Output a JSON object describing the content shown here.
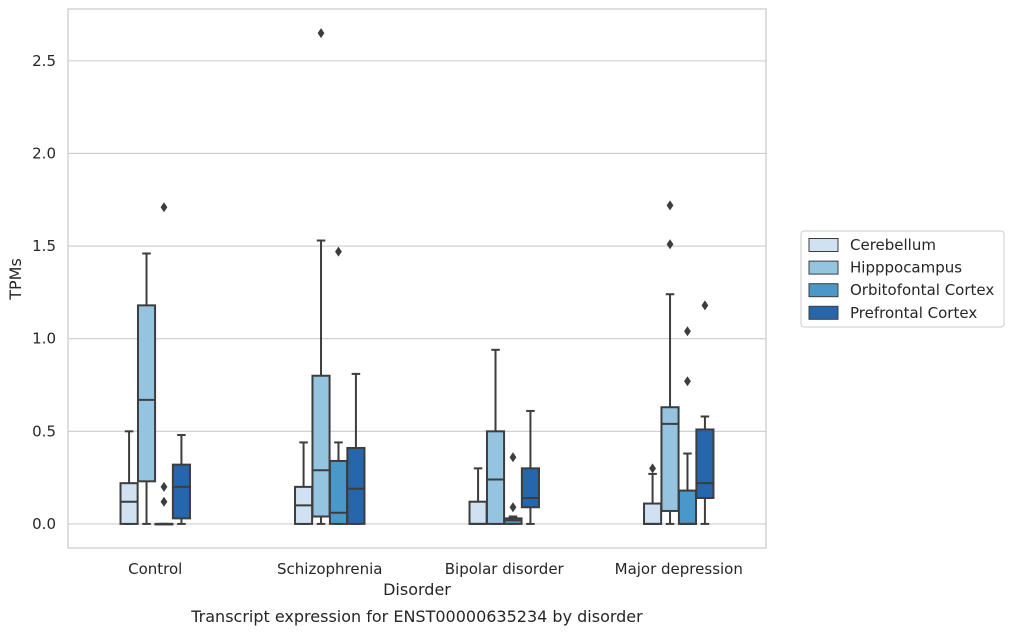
{
  "caption": "Transcript expression for ENST00000635234 by disorder",
  "chart_data": {
    "type": "box",
    "xlabel": "Disorder",
    "ylabel": "TPMs",
    "ylim": [
      -0.13,
      2.78
    ],
    "yticks": [
      0.0,
      0.5,
      1.0,
      1.5,
      2.0,
      2.5
    ],
    "ytick_labels": [
      "0.0",
      "0.5",
      "1.0",
      "1.5",
      "2.0",
      "2.5"
    ],
    "grid": true,
    "legend_position": "right",
    "categories": [
      "Control",
      "Schizophrenia",
      "Bipolar disorder",
      "Major depression"
    ],
    "series": [
      {
        "name": "Cerebellum",
        "color": "#d0e1f2",
        "boxes": [
          {
            "whislo": 0.0,
            "q1": 0.0,
            "med": 0.12,
            "q3": 0.22,
            "whishi": 0.5,
            "fliers": []
          },
          {
            "whislo": 0.0,
            "q1": 0.0,
            "med": 0.1,
            "q3": 0.2,
            "whishi": 0.44,
            "fliers": []
          },
          {
            "whislo": 0.0,
            "q1": 0.0,
            "med": 0.0,
            "q3": 0.12,
            "whishi": 0.3,
            "fliers": []
          },
          {
            "whislo": 0.0,
            "q1": 0.0,
            "med": 0.0,
            "q3": 0.11,
            "whishi": 0.27,
            "fliers": [
              0.3
            ]
          }
        ]
      },
      {
        "name": "Hipppocampus",
        "color": "#94c4df",
        "boxes": [
          {
            "whislo": 0.0,
            "q1": 0.23,
            "med": 0.67,
            "q3": 1.18,
            "whishi": 1.46,
            "fliers": []
          },
          {
            "whislo": 0.0,
            "q1": 0.04,
            "med": 0.29,
            "q3": 0.8,
            "whishi": 1.53,
            "fliers": [
              2.65
            ]
          },
          {
            "whislo": 0.0,
            "q1": 0.0,
            "med": 0.24,
            "q3": 0.5,
            "whishi": 0.94,
            "fliers": []
          },
          {
            "whislo": 0.0,
            "q1": 0.07,
            "med": 0.54,
            "q3": 0.63,
            "whishi": 1.24,
            "fliers": [
              1.51,
              1.72
            ]
          }
        ]
      },
      {
        "name": "Orbitofontal Cortex",
        "color": "#4a98c9",
        "boxes": [
          {
            "whislo": 0.0,
            "q1": 0.0,
            "med": 0.0,
            "q3": 0.0,
            "whishi": 0.0,
            "fliers": [
              0.12,
              0.2,
              1.71
            ]
          },
          {
            "whislo": 0.0,
            "q1": 0.0,
            "med": 0.06,
            "q3": 0.34,
            "whishi": 0.44,
            "fliers": [
              1.47
            ]
          },
          {
            "whislo": 0.0,
            "q1": 0.0,
            "med": 0.02,
            "q3": 0.03,
            "whishi": 0.04,
            "fliers": [
              0.09,
              0.36
            ]
          },
          {
            "whislo": 0.0,
            "q1": 0.0,
            "med": 0.0,
            "q3": 0.18,
            "whishi": 0.38,
            "fliers": [
              0.77,
              1.04
            ]
          }
        ]
      },
      {
        "name": "Prefrontal Cortex",
        "color": "#2566ad",
        "boxes": [
          {
            "whislo": 0.0,
            "q1": 0.03,
            "med": 0.2,
            "q3": 0.32,
            "whishi": 0.48,
            "fliers": []
          },
          {
            "whislo": 0.0,
            "q1": 0.0,
            "med": 0.19,
            "q3": 0.41,
            "whishi": 0.81,
            "fliers": []
          },
          {
            "whislo": 0.0,
            "q1": 0.09,
            "med": 0.14,
            "q3": 0.3,
            "whishi": 0.61,
            "fliers": []
          },
          {
            "whislo": 0.0,
            "q1": 0.14,
            "med": 0.22,
            "q3": 0.51,
            "whishi": 0.58,
            "fliers": [
              1.18
            ]
          }
        ]
      }
    ]
  }
}
